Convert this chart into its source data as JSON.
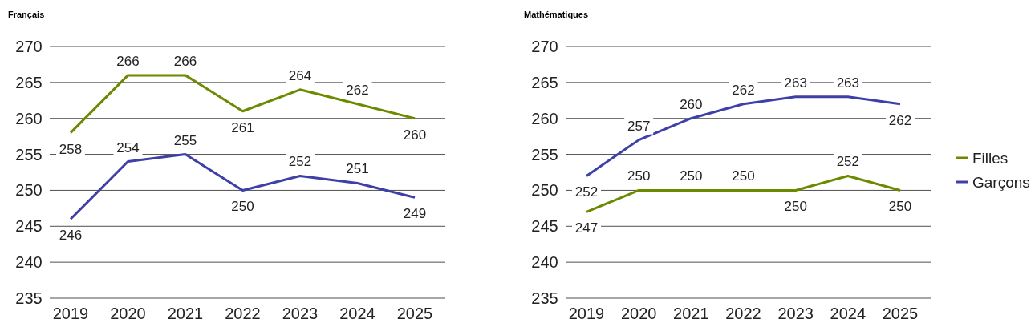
{
  "chart_data": [
    {
      "type": "line",
      "title": "Français",
      "categories": [
        "2019",
        "2020",
        "2021",
        "2022",
        "2023",
        "2024",
        "2025"
      ],
      "series": [
        {
          "color": "#6b8a00",
          "values": [
            258,
            266,
            266,
            261,
            264,
            262,
            260
          ]
        },
        {
          "color": "#3f3fa8",
          "values": [
            246,
            254,
            255,
            250,
            252,
            251,
            249
          ]
        }
      ],
      "ylim": [
        235,
        270
      ],
      "yticks": [
        235,
        240,
        245,
        250,
        255,
        260,
        265,
        270
      ],
      "grid": "y",
      "data_labels": true,
      "legend": false
    },
    {
      "type": "line",
      "title": "Mathématiques",
      "categories": [
        "2019",
        "2020",
        "2021",
        "2022",
        "2023",
        "2024",
        "2025"
      ],
      "series": [
        {
          "name": "Filles",
          "color": "#6b8a00",
          "values": [
            247,
            250,
            250,
            250,
            250,
            252,
            250
          ]
        },
        {
          "name": "Garçons",
          "color": "#3f3fa8",
          "values": [
            252,
            257,
            260,
            262,
            263,
            263,
            262
          ]
        }
      ],
      "ylim": [
        235,
        270
      ],
      "yticks": [
        235,
        240,
        245,
        250,
        255,
        260,
        265,
        270
      ],
      "grid": "y",
      "data_labels": true,
      "legend": "right"
    }
  ]
}
